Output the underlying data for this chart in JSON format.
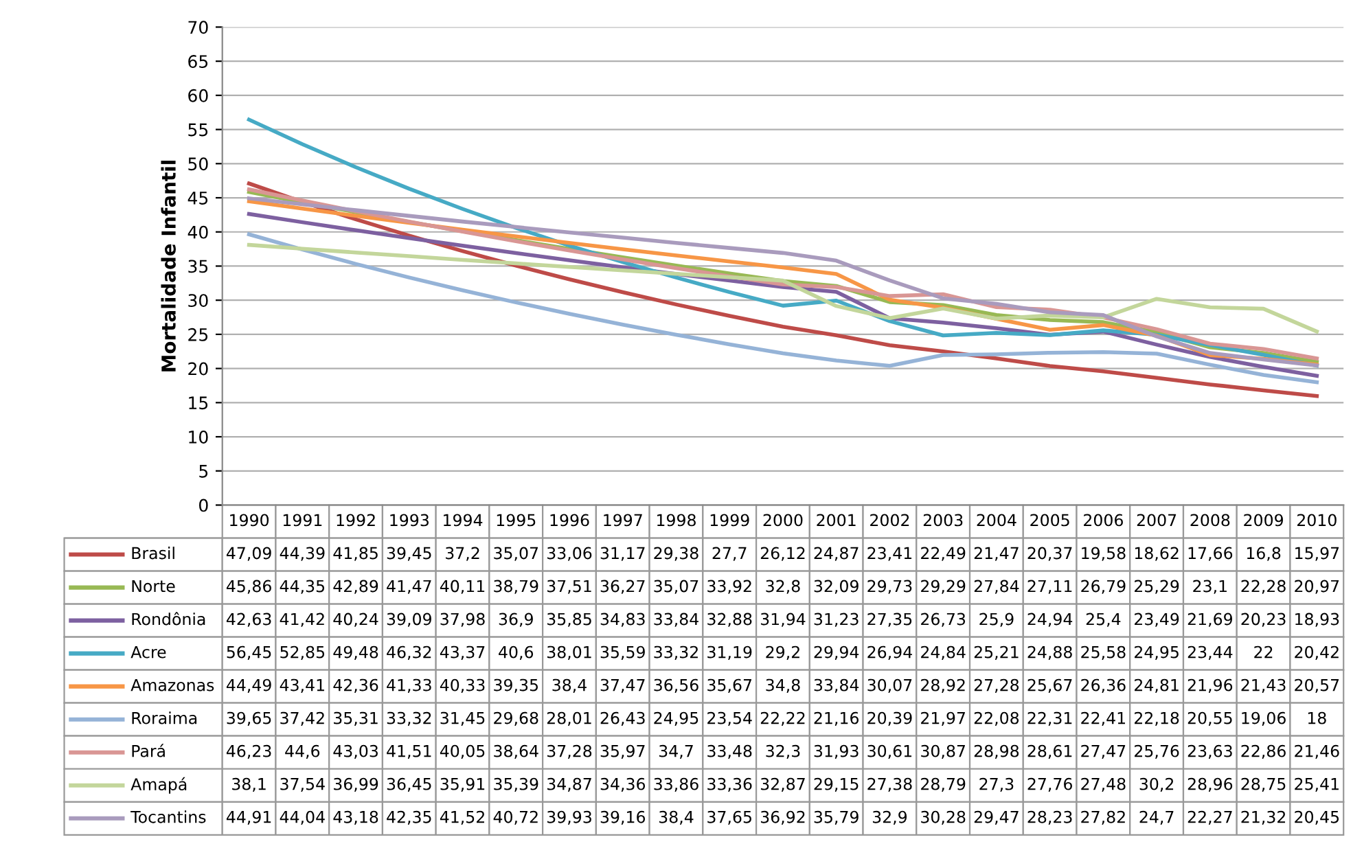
{
  "chart_data": {
    "type": "line",
    "ylabel": "Mortalidade Infantil",
    "categories": [
      "1990",
      "1991",
      "1992",
      "1993",
      "1994",
      "1995",
      "1996",
      "1997",
      "1998",
      "1999",
      "2000",
      "2001",
      "2002",
      "2003",
      "2004",
      "2005",
      "2006",
      "2007",
      "2008",
      "2009",
      "2010"
    ],
    "ylim": [
      0,
      70
    ],
    "yticks": [
      0,
      5,
      10,
      15,
      20,
      25,
      30,
      35,
      40,
      45,
      50,
      55,
      60,
      65,
      70
    ],
    "grid": "y",
    "marker": "none",
    "line_style": "solid",
    "legend": "bottom",
    "series": [
      {
        "name": "Brasil",
        "color": "#be4b48",
        "values": [
          47.09,
          44.39,
          41.85,
          39.45,
          37.2,
          35.07,
          33.06,
          31.17,
          29.38,
          27.7,
          26.12,
          24.87,
          23.41,
          22.49,
          21.47,
          20.37,
          19.58,
          18.62,
          17.66,
          16.8,
          15.97
        ],
        "value_labels": [
          "47,09",
          "44,39",
          "41,85",
          "39,45",
          "37,2",
          "35,07",
          "33,06",
          "31,17",
          "29,38",
          "27,7",
          "26,12",
          "24,87",
          "23,41",
          "22,49",
          "21,47",
          "20,37",
          "19,58",
          "18,62",
          "17,66",
          "16,8",
          "15,97"
        ]
      },
      {
        "name": "Norte",
        "color": "#98b954",
        "values": [
          45.86,
          44.35,
          42.89,
          41.47,
          40.11,
          38.79,
          37.51,
          36.27,
          35.07,
          33.92,
          32.8,
          32.09,
          29.73,
          29.29,
          27.84,
          27.11,
          26.79,
          25.29,
          23.1,
          22.28,
          20.97
        ],
        "value_labels": [
          "45,86",
          "44,35",
          "42,89",
          "41,47",
          "40,11",
          "38,79",
          "37,51",
          "36,27",
          "35,07",
          "33,92",
          "32,8",
          "32,09",
          "29,73",
          "29,29",
          "27,84",
          "27,11",
          "26,79",
          "25,29",
          "23,1",
          "22,28",
          "20,97"
        ]
      },
      {
        "name": "Rondônia",
        "color": "#7d60a0",
        "values": [
          42.63,
          41.42,
          40.24,
          39.09,
          37.98,
          36.9,
          35.85,
          34.83,
          33.84,
          32.88,
          31.94,
          31.23,
          27.35,
          26.73,
          25.9,
          24.94,
          25.4,
          23.49,
          21.69,
          20.23,
          18.93
        ],
        "value_labels": [
          "42,63",
          "41,42",
          "40,24",
          "39,09",
          "37,98",
          "36,9",
          "35,85",
          "34,83",
          "33,84",
          "32,88",
          "31,94",
          "31,23",
          "27,35",
          "26,73",
          "25,9",
          "24,94",
          "25,4",
          "23,49",
          "21,69",
          "20,23",
          "18,93"
        ]
      },
      {
        "name": "Acre",
        "color": "#46aac5",
        "values": [
          56.45,
          52.85,
          49.48,
          46.32,
          43.37,
          40.6,
          38.01,
          35.59,
          33.32,
          31.19,
          29.2,
          29.94,
          26.94,
          24.84,
          25.21,
          24.88,
          25.58,
          24.95,
          23.44,
          22,
          20.42
        ],
        "value_labels": [
          "56,45",
          "52,85",
          "49,48",
          "46,32",
          "43,37",
          "40,6",
          "38,01",
          "35,59",
          "33,32",
          "31,19",
          "29,2",
          "29,94",
          "26,94",
          "24,84",
          "25,21",
          "24,88",
          "25,58",
          "24,95",
          "23,44",
          "22",
          "20,42"
        ]
      },
      {
        "name": "Amazonas",
        "color": "#f79646",
        "values": [
          44.49,
          43.41,
          42.36,
          41.33,
          40.33,
          39.35,
          38.4,
          37.47,
          36.56,
          35.67,
          34.8,
          33.84,
          30.07,
          28.92,
          27.28,
          25.67,
          26.36,
          24.81,
          21.96,
          21.43,
          20.57
        ],
        "value_labels": [
          "44,49",
          "43,41",
          "42,36",
          "41,33",
          "40,33",
          "39,35",
          "38,4",
          "37,47",
          "36,56",
          "35,67",
          "34,8",
          "33,84",
          "30,07",
          "28,92",
          "27,28",
          "25,67",
          "26,36",
          "24,81",
          "21,96",
          "21,43",
          "20,57"
        ]
      },
      {
        "name": "Roraima",
        "color": "#95b3d7",
        "values": [
          39.65,
          37.42,
          35.31,
          33.32,
          31.45,
          29.68,
          28.01,
          26.43,
          24.95,
          23.54,
          22.22,
          21.16,
          20.39,
          21.97,
          22.08,
          22.31,
          22.41,
          22.18,
          20.55,
          19.06,
          18
        ],
        "value_labels": [
          "39,65",
          "37,42",
          "35,31",
          "33,32",
          "31,45",
          "29,68",
          "28,01",
          "26,43",
          "24,95",
          "23,54",
          "22,22",
          "21,16",
          "20,39",
          "21,97",
          "22,08",
          "22,31",
          "22,41",
          "22,18",
          "20,55",
          "19,06",
          "18"
        ]
      },
      {
        "name": "Pará",
        "color": "#d99694",
        "values": [
          46.23,
          44.6,
          43.03,
          41.51,
          40.05,
          38.64,
          37.28,
          35.97,
          34.7,
          33.48,
          32.3,
          31.93,
          30.61,
          30.87,
          28.98,
          28.61,
          27.47,
          25.76,
          23.63,
          22.86,
          21.46
        ],
        "value_labels": [
          "46,23",
          "44,6",
          "43,03",
          "41,51",
          "40,05",
          "38,64",
          "37,28",
          "35,97",
          "34,7",
          "33,48",
          "32,3",
          "31,93",
          "30,61",
          "30,87",
          "28,98",
          "28,61",
          "27,47",
          "25,76",
          "23,63",
          "22,86",
          "21,46"
        ]
      },
      {
        "name": "Amapá",
        "color": "#c3d69b",
        "values": [
          38.1,
          37.54,
          36.99,
          36.45,
          35.91,
          35.39,
          34.87,
          34.36,
          33.86,
          33.36,
          32.87,
          29.15,
          27.38,
          28.79,
          27.3,
          27.76,
          27.48,
          30.2,
          28.96,
          28.75,
          25.41
        ],
        "value_labels": [
          "38,1",
          "37,54",
          "36,99",
          "36,45",
          "35,91",
          "35,39",
          "34,87",
          "34,36",
          "33,86",
          "33,36",
          "32,87",
          "29,15",
          "27,38",
          "28,79",
          "27,3",
          "27,76",
          "27,48",
          "30,2",
          "28,96",
          "28,75",
          "25,41"
        ]
      },
      {
        "name": "Tocantins",
        "color": "#a99bbd",
        "values": [
          44.91,
          44.04,
          43.18,
          42.35,
          41.52,
          40.72,
          39.93,
          39.16,
          38.4,
          37.65,
          36.92,
          35.79,
          32.9,
          30.28,
          29.47,
          28.23,
          27.82,
          24.7,
          22.27,
          21.32,
          20.45
        ],
        "value_labels": [
          "44,91",
          "44,04",
          "43,18",
          "42,35",
          "41,52",
          "40,72",
          "39,93",
          "39,16",
          "38,4",
          "37,65",
          "36,92",
          "35,79",
          "32,9",
          "30,28",
          "29,47",
          "28,23",
          "27,82",
          "24,7",
          "22,27",
          "21,32",
          "20,45"
        ]
      }
    ]
  }
}
